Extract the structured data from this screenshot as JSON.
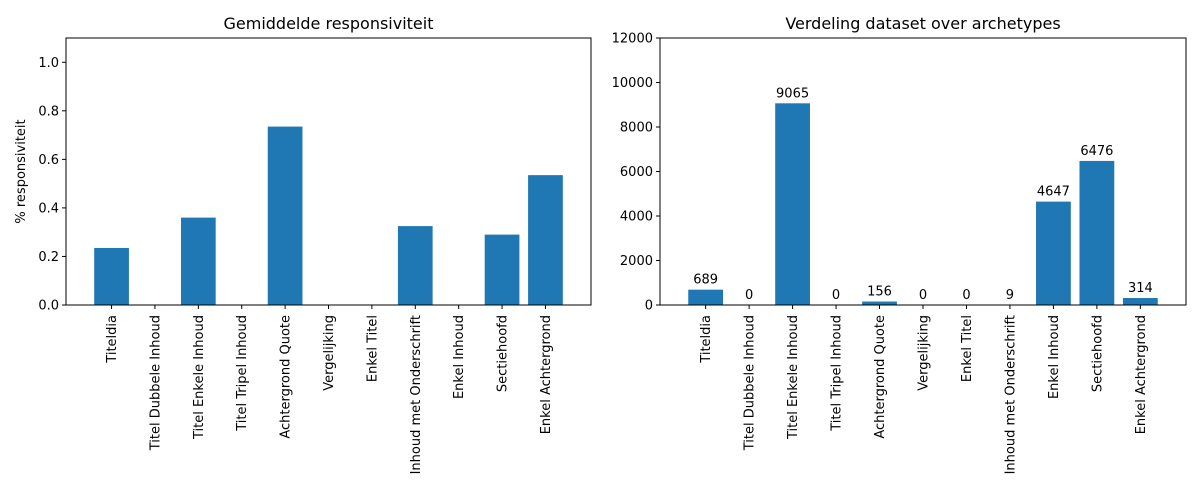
{
  "chart_data": [
    {
      "type": "bar",
      "title": "Gemiddelde responsiviteit",
      "xlabel": "",
      "ylabel": "% responsiviteit",
      "categories": [
        "Titeldia",
        "Titel Dubbele Inhoud",
        "Titel Enkele Inhoud",
        "Titel Tripel Inhoud",
        "Achtergrond Quote",
        "Vergelijking",
        "Enkel Titel",
        "Inhoud met Onderschrift",
        "Enkel Inhoud",
        "Sectiehoofd",
        "Enkel Achtergrond"
      ],
      "values": [
        0.235,
        0,
        0.36,
        0,
        0.735,
        0,
        0,
        0.325,
        0,
        0.29,
        0.535
      ],
      "ylim": [
        0,
        1.1
      ],
      "yticks": [
        0.0,
        0.2,
        0.4,
        0.6,
        0.8,
        1.0
      ],
      "ytick_labels": [
        "0.0",
        "0.2",
        "0.4",
        "0.6",
        "0.8",
        "1.0"
      ],
      "bar_color": "#1f77b4",
      "data_labels": false,
      "grid": false
    },
    {
      "type": "bar",
      "title": "Verdeling dataset over archetypes",
      "xlabel": "",
      "ylabel": "",
      "categories": [
        "Titeldia",
        "Titel Dubbele Inhoud",
        "Titel Enkele Inhoud",
        "Titel Tripel Inhoud",
        "Achtergrond Quote",
        "Vergelijking",
        "Enkel Titel",
        "Inhoud met Onderschrift",
        "Enkel Inhoud",
        "Sectiehoofd",
        "Enkel Achtergrond"
      ],
      "values": [
        689,
        0,
        9065,
        0,
        156,
        0,
        0,
        9,
        4647,
        6476,
        314
      ],
      "ylim": [
        0,
        12000
      ],
      "yticks": [
        0,
        2000,
        4000,
        6000,
        8000,
        10000,
        12000
      ],
      "ytick_labels": [
        "0",
        "2000",
        "4000",
        "6000",
        "8000",
        "10000",
        "12000"
      ],
      "bar_color": "#1f77b4",
      "data_labels": true,
      "grid": false
    }
  ]
}
